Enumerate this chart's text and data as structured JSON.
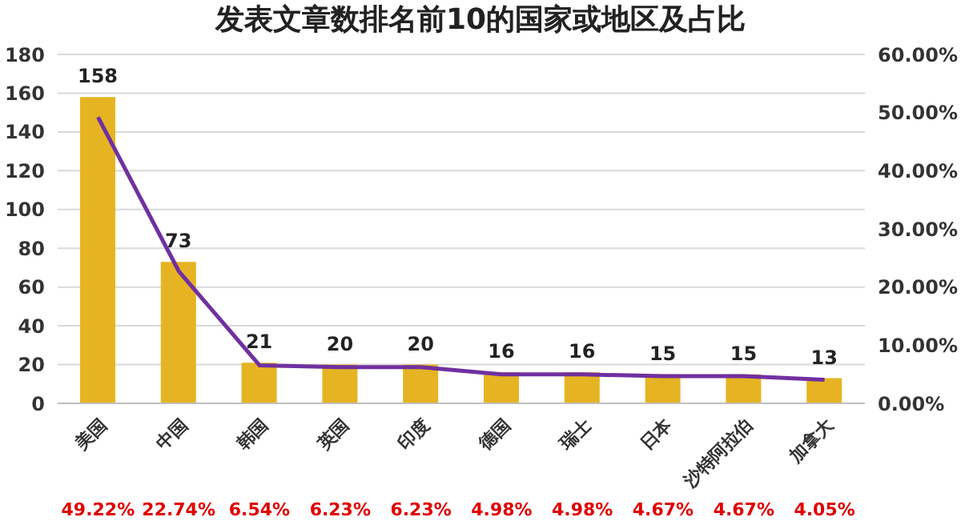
{
  "chart_data": {
    "type": "bar",
    "title": "发表文章数排名前10的国家或地区及占比",
    "categories": [
      "美国",
      "中国",
      "韩国",
      "英国",
      "印度",
      "德国",
      "瑞士",
      "日本",
      "沙特阿拉伯",
      "加拿大"
    ],
    "series": [
      {
        "color": "#e6b422",
        "values": [
          158,
          73,
          21,
          20,
          20,
          16,
          16,
          15,
          15,
          13
        ]
      },
      {
        "type": "line",
        "axis": "y2",
        "color": "#7030a0",
        "values": [
          49.22,
          22.74,
          6.54,
          6.23,
          6.23,
          4.98,
          4.98,
          4.67,
          4.67,
          4.05
        ],
        "value_labels": [
          "49.22%",
          "22.74%",
          "6.54%",
          "6.23%",
          "6.23%",
          "4.98%",
          "4.98%",
          "4.67%",
          "4.67%",
          "4.05%"
        ]
      }
    ],
    "data_labels": true,
    "ylim": [
      0,
      180
    ],
    "yticks": [
      0,
      20,
      40,
      60,
      80,
      100,
      120,
      140,
      160,
      180
    ],
    "y2lim": [
      0,
      60
    ],
    "y2ticks": [
      {
        "value": 0,
        "label": "0.00%"
      },
      {
        "value": 10,
        "label": "10.00%"
      },
      {
        "value": 20,
        "label": "20.00%"
      },
      {
        "value": 30,
        "label": "30.00%"
      },
      {
        "value": 40,
        "label": "40.00%"
      },
      {
        "value": 50,
        "label": "50.00%"
      },
      {
        "value": 60,
        "label": "60.00%"
      }
    ],
    "grid": "y",
    "legend": false,
    "marker": "none"
  }
}
